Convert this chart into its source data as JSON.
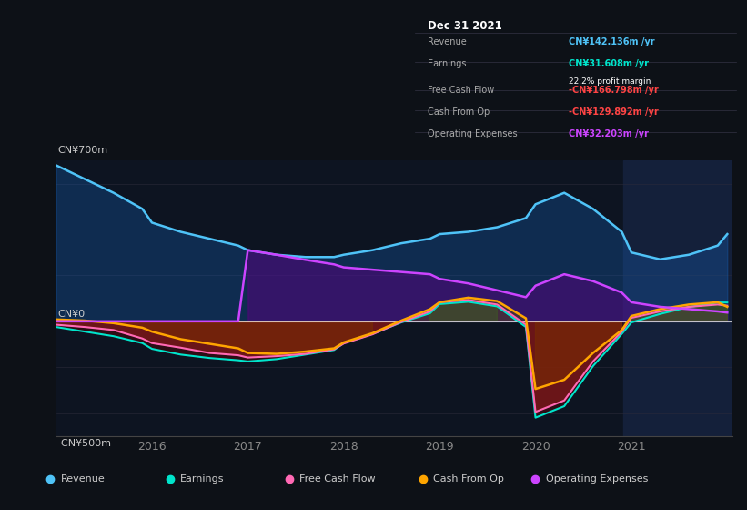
{
  "bg_color": "#0d1117",
  "plot_bg": "#0d1421",
  "y_max": 700,
  "y_min": -500,
  "y_zero_label": "CN¥0",
  "y_top_label": "CN¥700m",
  "y_bot_label": "-CN¥500m",
  "x_labels": [
    "2016",
    "2017",
    "2018",
    "2019",
    "2020",
    "2021"
  ],
  "info_box": {
    "title": "Dec 31 2021",
    "revenue_label": "Revenue",
    "revenue_val": "CN¥142.136m /yr",
    "revenue_color": "#4fc3f7",
    "earnings_label": "Earnings",
    "earnings_val": "CN¥31.608m /yr",
    "earnings_color": "#00e5cc",
    "margin_val": "22.2% profit margin",
    "fcf_label": "Free Cash Flow",
    "fcf_val": "-CN¥166.798m /yr",
    "fcf_color": "#ff4444",
    "cashop_label": "Cash From Op",
    "cashop_val": "-CN¥129.892m /yr",
    "cashop_color": "#ff4444",
    "opex_label": "Operating Expenses",
    "opex_val": "CN¥32.203m /yr",
    "opex_color": "#cc44ff"
  },
  "legend": [
    {
      "label": "Revenue",
      "color": "#4fc3f7"
    },
    {
      "label": "Earnings",
      "color": "#00e5cc"
    },
    {
      "label": "Free Cash Flow",
      "color": "#ff69b4"
    },
    {
      "label": "Cash From Op",
      "color": "#ffa500"
    },
    {
      "label": "Operating Expenses",
      "color": "#cc44ff"
    }
  ],
  "x": [
    2015.0,
    2015.3,
    2015.6,
    2015.9,
    2016.0,
    2016.3,
    2016.6,
    2016.9,
    2017.0,
    2017.3,
    2017.6,
    2017.9,
    2018.0,
    2018.3,
    2018.6,
    2018.9,
    2019.0,
    2019.3,
    2019.6,
    2019.9,
    2020.0,
    2020.3,
    2020.6,
    2020.9,
    2021.0,
    2021.3,
    2021.6,
    2021.9,
    2022.0
  ],
  "revenue": [
    680,
    620,
    560,
    490,
    430,
    390,
    360,
    330,
    310,
    290,
    280,
    280,
    290,
    310,
    340,
    360,
    380,
    390,
    410,
    450,
    510,
    560,
    490,
    390,
    300,
    270,
    290,
    330,
    380
  ],
  "earnings": [
    -25,
    -45,
    -65,
    -95,
    -120,
    -145,
    -160,
    -170,
    -175,
    -165,
    -145,
    -125,
    -95,
    -55,
    -5,
    35,
    75,
    85,
    65,
    -25,
    -420,
    -370,
    -195,
    -55,
    -5,
    32,
    62,
    82,
    82
  ],
  "free_cash_flow": [
    -15,
    -25,
    -38,
    -75,
    -95,
    -115,
    -138,
    -148,
    -158,
    -152,
    -142,
    -122,
    -97,
    -57,
    -3,
    43,
    83,
    93,
    73,
    -15,
    -395,
    -345,
    -175,
    -45,
    15,
    43,
    63,
    73,
    68
  ],
  "cash_from_op": [
    8,
    3,
    -8,
    -28,
    -45,
    -78,
    -98,
    -118,
    -138,
    -142,
    -132,
    -118,
    -92,
    -52,
    3,
    53,
    83,
    103,
    88,
    13,
    -295,
    -255,
    -138,
    -38,
    23,
    53,
    73,
    83,
    63
  ],
  "operating_expenses": [
    0,
    0,
    0,
    0,
    0,
    0,
    0,
    0,
    310,
    290,
    268,
    248,
    235,
    225,
    215,
    205,
    185,
    165,
    135,
    105,
    155,
    205,
    175,
    125,
    83,
    63,
    53,
    43,
    38
  ]
}
